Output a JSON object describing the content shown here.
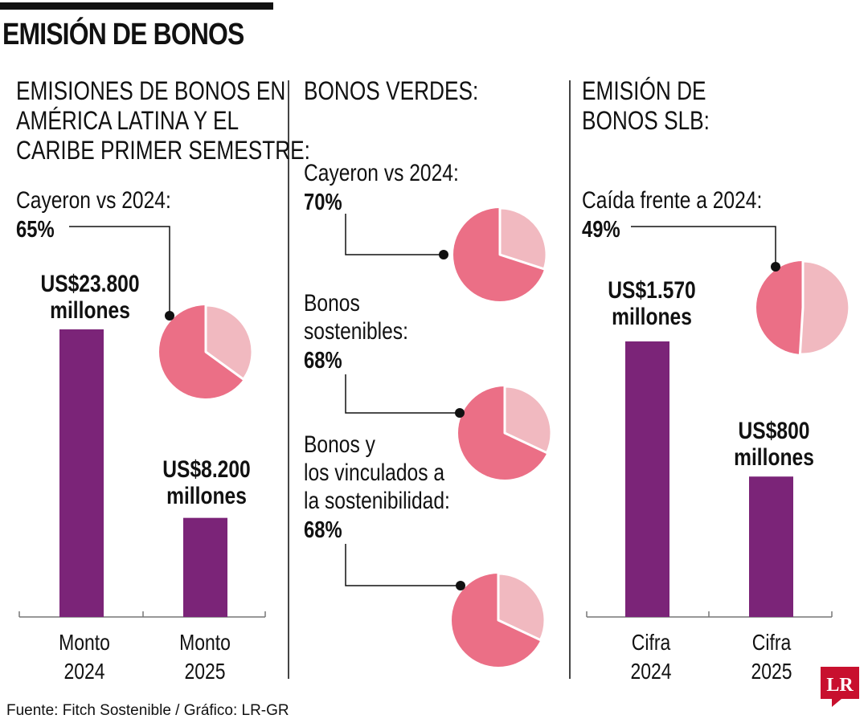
{
  "title": "EMISIÓN DE BONOS",
  "colors": {
    "bar": "#7b2478",
    "pie_main": "#eb6f86",
    "pie_part": "#f1b9c0",
    "text": "#111111"
  },
  "panels": {
    "left": {
      "heading": [
        "EMISIONES DE BONOS EN",
        "AMÉRICA LATINA Y EL",
        "CARIBE PRIMER SEMESTRE:"
      ],
      "note": "Cayeron vs 2024:",
      "pct": "65%"
    },
    "middle": {
      "heading": "BONOS VERDES:",
      "note1": "Cayeron vs 2024:",
      "pct1": "70%",
      "note2": [
        "Bonos",
        "sostenibles:"
      ],
      "pct2": "68%",
      "note3": [
        "Bonos y",
        "los vinculados a",
        "la sostenibilidad:"
      ],
      "pct3": "68%"
    },
    "right": {
      "heading": [
        "EMISIÓN DE",
        "BONOS SLB:"
      ],
      "note": "Caída frente a 2024:",
      "pct": "49%"
    }
  },
  "chart_data": [
    {
      "type": "bar",
      "categories": [
        "Monto 2024",
        "Monto 2025"
      ],
      "category_lines": [
        [
          "Monto",
          "2024"
        ],
        [
          "Monto",
          "2025"
        ]
      ],
      "values": [
        23800,
        8200
      ],
      "value_labels": [
        [
          "US$23.800",
          "millones"
        ],
        [
          "US$8.200",
          "millones"
        ]
      ],
      "ylabel": "US$ millones"
    },
    {
      "type": "pie",
      "labels": [
        "Cayeron vs 2024"
      ],
      "values": [
        65
      ]
    },
    {
      "type": "pie",
      "labels": [
        "Cayeron vs 2024"
      ],
      "values": [
        70
      ]
    },
    {
      "type": "pie",
      "labels": [
        "Bonos sostenibles"
      ],
      "values": [
        68
      ]
    },
    {
      "type": "pie",
      "labels": [
        "Bonos y los vinculados a la sostenibilidad"
      ],
      "values": [
        68
      ]
    },
    {
      "type": "pie",
      "labels": [
        "Caída frente a 2024"
      ],
      "values": [
        49
      ]
    },
    {
      "type": "bar",
      "categories": [
        "Cifra 2024",
        "Cifra 2025"
      ],
      "category_lines": [
        [
          "Cifra",
          "2024"
        ],
        [
          "Cifra",
          "2025"
        ]
      ],
      "values": [
        1570,
        800
      ],
      "value_labels": [
        [
          "US$1.570",
          "millones"
        ],
        [
          "US$800",
          "millones"
        ]
      ],
      "ylabel": "US$ millones"
    }
  ],
  "source": "Fuente: Fitch Sostenible / Gráfico: LR-GR",
  "logo": {
    "text": "LR",
    "color": "#c8102e"
  }
}
